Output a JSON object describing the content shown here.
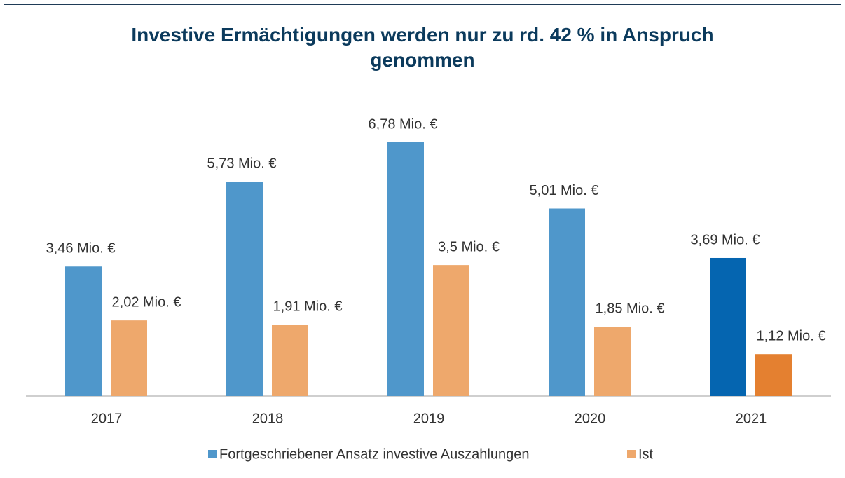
{
  "chart_data": {
    "type": "bar",
    "title": "Investive Ermächtigungen werden nur zu rd. 42 % in Anspruch genommen",
    "categories": [
      "2017",
      "2018",
      "2019",
      "2020",
      "2021"
    ],
    "series": [
      {
        "name": "Fortgeschriebener Ansatz investive Auszahlungen",
        "color": "#4f97cb",
        "colors": [
          "#4f97cb",
          "#4f97cb",
          "#4f97cb",
          "#4f97cb",
          "#0565b0"
        ],
        "values": [
          3.46,
          5.73,
          6.78,
          5.01,
          3.69
        ],
        "value_labels": [
          "3,46 Mio. €",
          "5,73 Mio. €",
          "6,78 Mio. €",
          "5,01 Mio. €",
          "3,69 Mio. €"
        ]
      },
      {
        "name": "Ist",
        "color": "#eea86c",
        "colors": [
          "#eea86c",
          "#eea86c",
          "#eea86c",
          "#eea86c",
          "#e48030"
        ],
        "values": [
          2.02,
          1.91,
          3.5,
          1.85,
          1.12
        ],
        "value_labels": [
          "2,02 Mio. €",
          "1,91 Mio. €",
          "3,5 Mio. €",
          "1,85 Mio. €",
          "1,12 Mio. €"
        ]
      }
    ]
  }
}
